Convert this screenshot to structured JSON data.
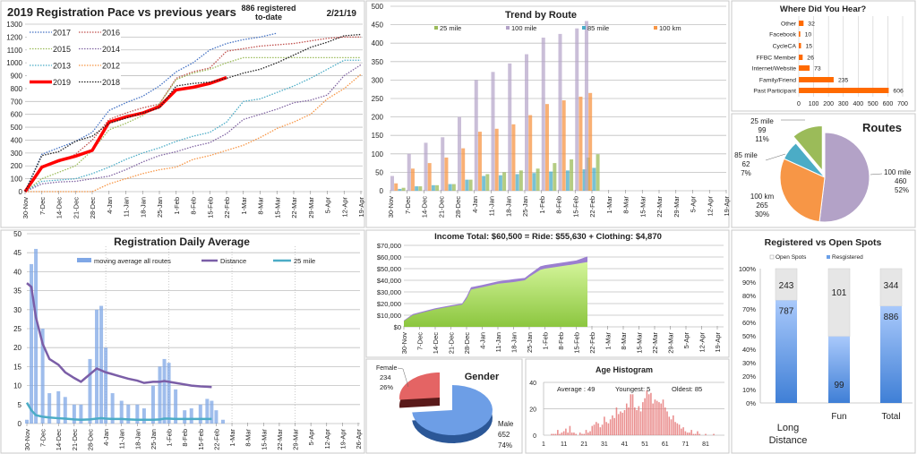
{
  "colors": {
    "panel_border": "#c8c8c8",
    "grid": "#bfbfbf"
  },
  "chart_data": [
    {
      "type": "line",
      "title": "2019 Registration Pace vs previous years",
      "note_line1": "886 registered",
      "note_line2": "to-date",
      "date": "2/21/19",
      "ylim": [
        0,
        1300
      ],
      "yticks": [
        "0",
        "100",
        "200",
        "300",
        "400",
        "500",
        "600",
        "700",
        "800",
        "900",
        "1000",
        "1100",
        "1200",
        "1300"
      ],
      "x": [
        "30-Nov",
        "7-Dec",
        "14-Dec",
        "21-Dec",
        "28-Dec",
        "4-Jan",
        "11-Jan",
        "18-Jan",
        "25-Jan",
        "1-Feb",
        "8-Feb",
        "15-Feb",
        "22-Feb",
        "1-Mar",
        "8-Mar",
        "15-Mar",
        "22-Mar",
        "29-Mar",
        "5-Apr",
        "12-Apr",
        "19-Apr"
      ],
      "grid": true,
      "legend": "top-left",
      "series": [
        {
          "name": "2017",
          "color": "#4472c4",
          "values": [
            0,
            290,
            340,
            390,
            460,
            630,
            690,
            740,
            820,
            930,
            1000,
            1100,
            1150,
            1180,
            1200,
            1230,
            null,
            null,
            null,
            null,
            null
          ]
        },
        {
          "name": "2016",
          "color": "#c0504d",
          "values": [
            0,
            200,
            230,
            290,
            400,
            560,
            610,
            650,
            680,
            880,
            930,
            960,
            1090,
            1110,
            1130,
            1140,
            1150,
            1170,
            1190,
            1200,
            1200
          ]
        },
        {
          "name": "2015",
          "color": "#9bbb59",
          "values": [
            0,
            100,
            150,
            200,
            320,
            480,
            530,
            590,
            680,
            870,
            920,
            950,
            1000,
            1040,
            1040,
            1040,
            1040,
            1040,
            1040,
            1040,
            1040
          ]
        },
        {
          "name": "2014",
          "color": "#8064a2",
          "values": [
            0,
            60,
            75,
            80,
            100,
            120,
            170,
            230,
            280,
            310,
            350,
            380,
            450,
            560,
            600,
            640,
            690,
            710,
            750,
            900,
            985
          ]
        },
        {
          "name": "2013",
          "color": "#4bacc6",
          "values": [
            0,
            80,
            90,
            100,
            140,
            190,
            250,
            300,
            340,
            390,
            430,
            460,
            540,
            700,
            720,
            770,
            820,
            880,
            950,
            1020,
            1020
          ]
        },
        {
          "name": "2012",
          "color": "#f79646",
          "values": [
            0,
            0,
            0,
            0,
            0,
            60,
            100,
            140,
            170,
            190,
            250,
            280,
            320,
            360,
            420,
            490,
            540,
            600,
            720,
            800,
            910
          ]
        },
        {
          "name": "2019",
          "color": "#ff0000",
          "values": [
            0,
            190,
            240,
            275,
            320,
            540,
            580,
            610,
            660,
            790,
            810,
            840,
            886,
            null,
            null,
            null,
            null,
            null,
            null,
            null,
            null
          ]
        },
        {
          "name": "2018",
          "color": "#222222",
          "values": [
            0,
            280,
            310,
            390,
            430,
            530,
            570,
            610,
            650,
            820,
            840,
            850,
            880,
            920,
            950,
            1000,
            1060,
            1120,
            1160,
            1210,
            1220
          ]
        }
      ]
    },
    {
      "type": "bar",
      "title": "Trend by Route",
      "ylim": [
        0,
        500
      ],
      "yticks": [
        "0",
        "50",
        "100",
        "150",
        "200",
        "250",
        "300",
        "350",
        "400",
        "450",
        "500"
      ],
      "xticks": [
        "30-Nov",
        "7-Dec",
        "14-Dec",
        "21-Dec",
        "28-Dec",
        "4-Jan",
        "11-Jan",
        "18-Jan",
        "25-Jan",
        "1-Feb",
        "8-Feb",
        "15-Feb",
        "22-Feb",
        "1-Mar",
        "8-Mar",
        "15-Mar",
        "22-Mar",
        "29-Mar",
        "5-Apr",
        "12-Apr",
        "19-Apr"
      ],
      "x": [
        "30-Nov",
        "7-Dec",
        "14-Dec",
        "21-Dec",
        "28-Dec",
        "4-Jan",
        "11-Jan",
        "18-Jan",
        "25-Jan",
        "1-Feb",
        "8-Feb",
        "15-Feb",
        "19-Feb"
      ],
      "legend": "top",
      "series": [
        {
          "name": "25 mile",
          "color": "#9bbb59",
          "values": [
            8,
            12,
            15,
            18,
            30,
            45,
            50,
            55,
            60,
            75,
            85,
            90,
            99
          ]
        },
        {
          "name": "100 mile",
          "color": "#b3a2c7",
          "values": [
            40,
            100,
            130,
            145,
            200,
            300,
            322,
            345,
            370,
            415,
            425,
            440,
            460
          ]
        },
        {
          "name": "85 mile",
          "color": "#4bacc6",
          "values": [
            5,
            12,
            15,
            18,
            30,
            40,
            42,
            45,
            48,
            52,
            55,
            58,
            62
          ]
        },
        {
          "name": "100 km",
          "color": "#f79646",
          "values": [
            20,
            60,
            75,
            90,
            115,
            160,
            168,
            180,
            205,
            235,
            245,
            255,
            265
          ]
        }
      ]
    },
    {
      "type": "bar",
      "orientation": "horizontal",
      "title": "Where Did You Hear?",
      "categories": [
        "Other",
        "Facebook",
        "CycleCA",
        "FFBC Member",
        "Internet/Website",
        "Family/Friend",
        "Past Participant"
      ],
      "values": [
        32,
        10,
        15,
        26,
        73,
        235,
        606
      ],
      "labels": [
        "32",
        "10",
        "15",
        "26",
        "73",
        "235",
        "606"
      ],
      "xlim": [
        0,
        700
      ],
      "xticks": [
        "0",
        "100",
        "200",
        "300",
        "400",
        "500",
        "600",
        "700"
      ],
      "color": "#ff6a00"
    },
    {
      "type": "pie",
      "title": "Routes",
      "slices": [
        {
          "name": "100 mile",
          "value": 460,
          "value_label": "460",
          "pct": "52%",
          "color": "#b3a2c7"
        },
        {
          "name": "100 km",
          "value": 265,
          "value_label": "265",
          "pct": "30%",
          "color": "#f79646"
        },
        {
          "name": "85 mile",
          "value": 62,
          "value_label": "62",
          "pct": "7%",
          "color": "#4bacc6"
        },
        {
          "name": "25 mile",
          "value": 99,
          "value_label": "99",
          "pct": "11%",
          "color": "#9bbb59",
          "exploded": true
        }
      ]
    },
    {
      "type": "bar",
      "title": "Registration Daily Average",
      "ylim": [
        0,
        50
      ],
      "yticks": [
        "0",
        "5",
        "10",
        "15",
        "20",
        "25",
        "30",
        "35",
        "40",
        "45",
        "50"
      ],
      "xticks": [
        "30-Nov",
        "7-Dec",
        "14-Dec",
        "21-Dec",
        "28-Dec",
        "4-Jan",
        "11-Jan",
        "18-Jan",
        "25-Jan",
        "1-Feb",
        "8-Feb",
        "15-Feb",
        "22-Feb",
        "1-Mar",
        "8-Mar",
        "15-Mar",
        "22-Mar",
        "29-Mar",
        "5-Apr",
        "12-Apr",
        "19-Apr",
        "26-Apr"
      ],
      "x": [
        "30-Nov",
        "2-Dec",
        "4-Dec",
        "7-Dec",
        "10-Dec",
        "14-Dec",
        "17-Dec",
        "21-Dec",
        "24-Dec",
        "28-Dec",
        "31-Dec",
        "2-Jan",
        "4-Jan",
        "7-Jan",
        "11-Jan",
        "14-Jan",
        "18-Jan",
        "21-Jan",
        "25-Jan",
        "28-Jan",
        "30-Jan",
        "1-Feb",
        "4-Feb",
        "8-Feb",
        "11-Feb",
        "15-Feb",
        "18-Feb",
        "20-Feb",
        "22-Feb",
        "25-Feb"
      ],
      "legend": "top",
      "series": [
        {
          "name": "moving average all routes",
          "kind": "bar",
          "color": "#7fa7e6",
          "values": [
            1,
            42,
            46,
            25,
            8,
            8.5,
            7,
            5,
            5,
            17,
            30,
            31,
            20,
            8,
            6,
            5,
            5,
            4,
            10,
            15,
            17,
            16,
            9,
            3.5,
            4,
            5,
            6.5,
            6,
            3.5,
            1
          ]
        },
        {
          "name": "Distance",
          "kind": "line",
          "color": "#7b5ea7",
          "values": [
            37,
            36,
            28,
            21,
            17,
            15.5,
            13.5,
            12,
            11,
            13,
            14.5,
            14,
            13.5,
            13,
            12.3,
            11.8,
            11.3,
            10.7,
            11,
            11,
            11.2,
            11,
            10.7,
            10.3,
            10,
            9.8,
            9.7,
            9.6,
            null,
            null
          ]
        },
        {
          "name": "25 mile",
          "kind": "line",
          "color": "#4bacc6",
          "values": [
            5.5,
            3.5,
            2.2,
            1.8,
            1.6,
            1.4,
            1.3,
            1.1,
            1.0,
            1.1,
            1.3,
            1.4,
            1.3,
            1.2,
            1.2,
            1.1,
            1.0,
            1.0,
            1.0,
            1.1,
            1.3,
            1.3,
            1.2,
            1.2,
            1.2,
            1.2,
            1.2,
            1.2,
            null,
            null
          ]
        }
      ]
    },
    {
      "type": "area",
      "title": "Income Total: $60,500  =  Ride: $55,630 +  Clothing: $4,870",
      "ylim": [
        0,
        70000
      ],
      "yticks": [
        "$0",
        "$10,000",
        "$20,000",
        "$30,000",
        "$40,000",
        "$50,000",
        "$60,000",
        "$70,000"
      ],
      "xticks": [
        "30-Nov",
        "7-Dec",
        "14-Dec",
        "21-Dec",
        "28-Dec",
        "4-Jan",
        "11-Jan",
        "18-Jan",
        "25-Jan",
        "1-Feb",
        "8-Feb",
        "15-Feb",
        "22-Feb",
        "1-Mar",
        "8-Mar",
        "15-Mar",
        "22-Mar",
        "29-Mar",
        "5-Apr",
        "12-Apr",
        "19-Apr"
      ],
      "x": [
        "30-Nov",
        "4-Dec",
        "7-Dec",
        "14-Dec",
        "21-Dec",
        "26-Dec",
        "28-Dec",
        "30-Dec",
        "4-Jan",
        "11-Jan",
        "18-Jan",
        "23-Jan",
        "25-Jan",
        "30-Jan",
        "1-Feb",
        "8-Feb",
        "15-Feb",
        "20-Feb"
      ],
      "series": [
        {
          "name": "Ride",
          "color": "#a6d96a",
          "values": [
            5000,
            10000,
            11500,
            15000,
            17500,
            19000,
            24000,
            32000,
            34000,
            37000,
            38500,
            40000,
            43000,
            49000,
            50000,
            52000,
            54000,
            55630
          ]
        },
        {
          "name": "Total",
          "color": "#9b7fd0",
          "values": [
            5500,
            11000,
            12500,
            16000,
            18500,
            20000,
            26000,
            34000,
            36000,
            39000,
            41000,
            42000,
            45000,
            52000,
            53000,
            55000,
            57000,
            60500
          ]
        }
      ]
    },
    {
      "type": "pie",
      "title": "Gender",
      "slices": [
        {
          "name": "Male",
          "value": 652,
          "value_label": "652",
          "pct": "74%",
          "color": "#5b8fd9"
        },
        {
          "name": "Female",
          "value": 234,
          "value_label": "234",
          "pct": "26%",
          "color": "#e05a5a",
          "exploded": true
        }
      ]
    },
    {
      "type": "bar",
      "title": "Age Histogram",
      "stats": {
        "average": "Average : 49",
        "youngest": "Youngest: 5",
        "oldest": "Oldest: 85"
      },
      "ylim": [
        0,
        40
      ],
      "yticks": [
        "0",
        "20",
        "40"
      ],
      "xticks": [
        "1",
        "11",
        "21",
        "31",
        "41",
        "51",
        "61",
        "71",
        "81"
      ],
      "x_start_age": 5,
      "color": "#e57373",
      "values": [
        1,
        1,
        1,
        4,
        1,
        2,
        3,
        5,
        2,
        7,
        2,
        2,
        1,
        0,
        2,
        1,
        1,
        4,
        2,
        3,
        7,
        8,
        10,
        9,
        6,
        8,
        14,
        10,
        9,
        12,
        15,
        13,
        21,
        16,
        18,
        17,
        19,
        24,
        21,
        31,
        31,
        21,
        19,
        22,
        18,
        25,
        28,
        34,
        31,
        32,
        24,
        27,
        26,
        25,
        24,
        27,
        21,
        18,
        14,
        12,
        15,
        10,
        9,
        8,
        5,
        6,
        3,
        2,
        2,
        4,
        1,
        1,
        3,
        1,
        0,
        0,
        1,
        0,
        0,
        0,
        1
      ]
    },
    {
      "type": "bar",
      "stacked": true,
      "title": "Registered vs Open Spots",
      "yticks": [
        "0%",
        "10%",
        "20%",
        "30%",
        "40%",
        "50%",
        "60%",
        "70%",
        "80%",
        "90%",
        "100%"
      ],
      "categories": [
        "Long Distance",
        "Fun",
        "Total"
      ],
      "legend": "top",
      "series": [
        {
          "name": "Open Spots",
          "color": "#e6e6e6",
          "values": [
            243,
            101,
            344
          ],
          "labels": [
            "243",
            "101",
            "344"
          ]
        },
        {
          "name": "Resgistered",
          "color": "#6a9fe8",
          "values": [
            787,
            99,
            886
          ],
          "labels": [
            "787",
            "99",
            "886"
          ]
        }
      ]
    }
  ]
}
